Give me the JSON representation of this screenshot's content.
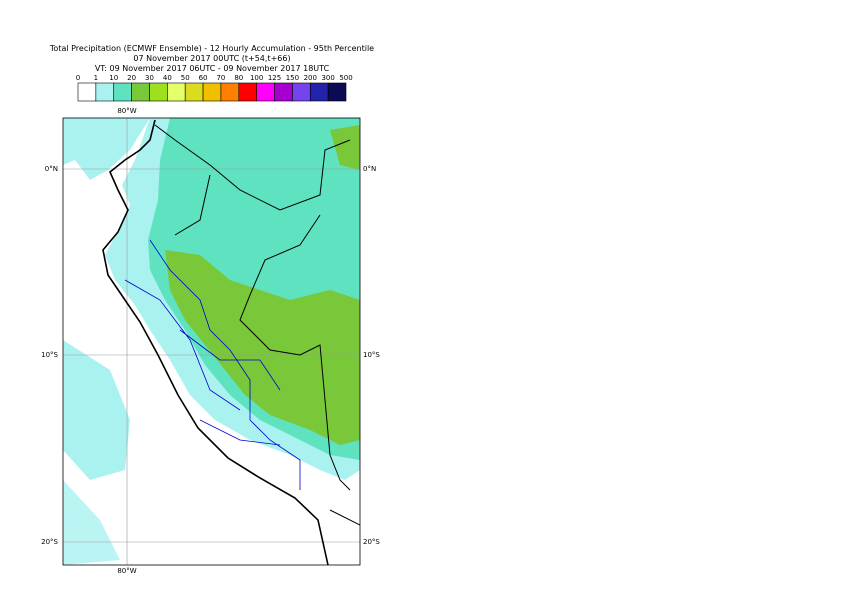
{
  "title": [
    "Total Precipitation (ECMWF Ensemble) - 12 Hourly Accumulation - 95th Percentile",
    "07 November 2017 00UTC (t+54,t+66)",
    "VT: 09 November 2017 06UTC - 09 November 2017 18UTC"
  ],
  "legend": {
    "ticks": [
      0,
      1,
      10,
      20,
      30,
      40,
      50,
      60,
      70,
      80,
      100,
      125,
      150,
      200,
      300,
      500
    ],
    "colors": [
      "#ffffff",
      "#aaf2f0",
      "#5fe2bf",
      "#78c83a",
      "#9ee01e",
      "#e4ff6a",
      "#dcdc1e",
      "#f2bf00",
      "#ff8000",
      "#ff0000",
      "#ff00ff",
      "#a600d0",
      "#7444ee",
      "#2222aa",
      "#0a0a55"
    ]
  },
  "map": {
    "lon_labels": [
      "80°W",
      "80°W"
    ],
    "lat_labels": [
      "0°N",
      "10°S",
      "20°S"
    ]
  }
}
